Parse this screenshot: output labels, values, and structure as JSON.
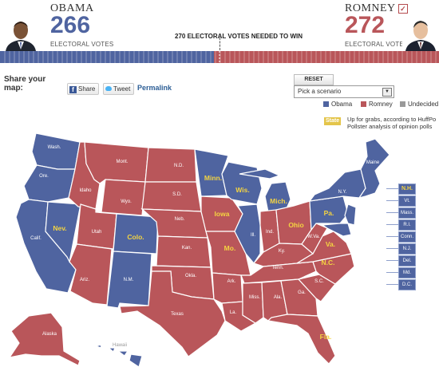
{
  "header": {
    "obama": {
      "name": "OBAMA",
      "votes": "266",
      "sub": "ELECTORAL VOTES",
      "color": "#4f64a0"
    },
    "romney": {
      "name": "ROMNEY",
      "votes": "272",
      "sub": "ELECTORAL VOTES",
      "color": "#b9565a",
      "winner": true
    },
    "needed": "270 ELECTORAL VOTES NEEDED TO WIN"
  },
  "toolbar": {
    "share_label": "Share your map:",
    "facebook": "Share",
    "twitter": "Tweet",
    "permalink": "Permalink",
    "reset": "RESET",
    "scenario_placeholder": "Pick a scenario"
  },
  "legend": {
    "obama": {
      "label": "Obama",
      "color": "#4f64a0"
    },
    "romney": {
      "label": "Romney",
      "color": "#b9565a"
    },
    "undecided": {
      "label": "Undecided",
      "color": "#999999"
    },
    "state_tag": "State",
    "note_line1": "Up for grabs, according to HuffPo",
    "note_line2": "Pollster analysis of opinion polls"
  },
  "map": {
    "state_labels": [
      "Wash.",
      "Ore.",
      "Calif.",
      "Nev.",
      "Idaho",
      "Mont.",
      "Wyo.",
      "Utah",
      "Colo.",
      "Ariz.",
      "N.M.",
      "N.D.",
      "S.D.",
      "Neb.",
      "Kan.",
      "Okla.",
      "Texas",
      "Minn.",
      "Iowa",
      "Mo.",
      "Ark.",
      "La.",
      "Wis.",
      "Ill.",
      "Mich.",
      "Ind.",
      "Ohio",
      "Ky.",
      "Tenn.",
      "Miss.",
      "Ala.",
      "Ga.",
      "Fla.",
      "S.C.",
      "N.C.",
      "Va.",
      "W.Va.",
      "Pa.",
      "N.Y.",
      "Maine",
      "Alaska",
      "Hawaii"
    ],
    "east_boxes": [
      "N.H.",
      "Vt.",
      "Mass.",
      "R.I.",
      "Conn.",
      "N.J.",
      "Del.",
      "Md.",
      "D.C."
    ]
  }
}
